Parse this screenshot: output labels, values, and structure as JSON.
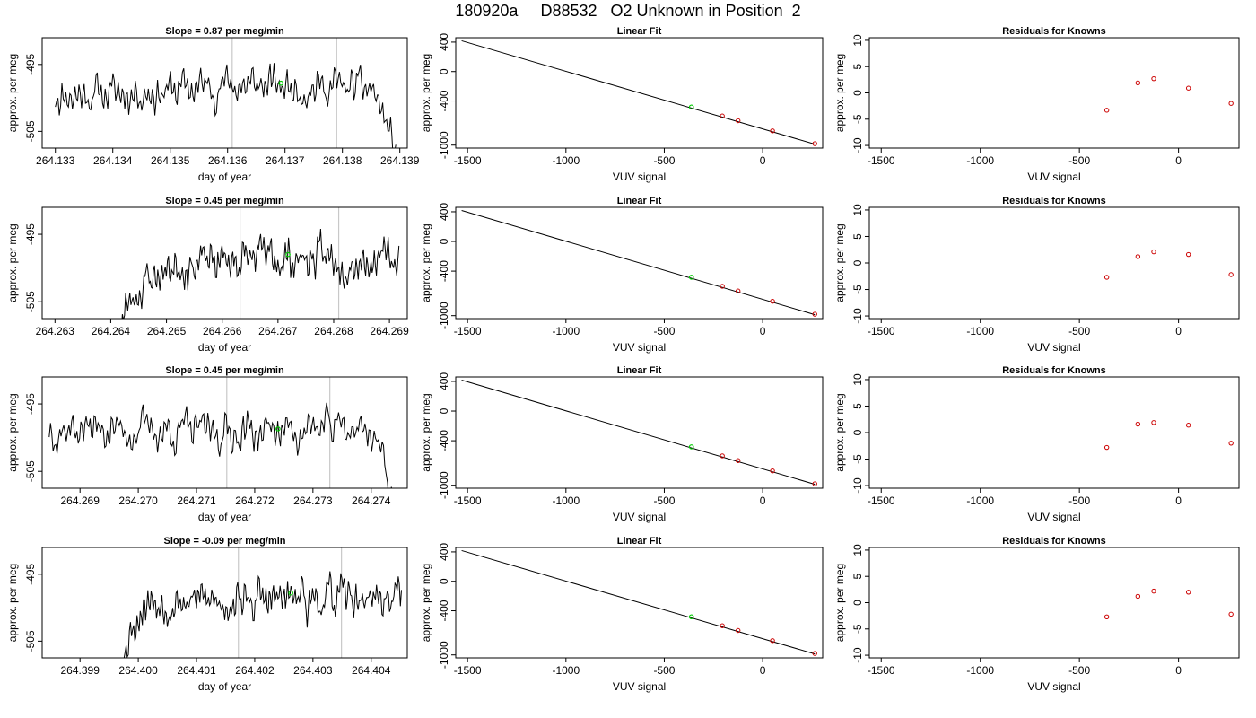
{
  "page": {
    "title": "180920a     D88532   O2 Unknown in Position  2"
  },
  "style": {
    "trace_color": "#000000",
    "unknown_color": "#00cc00",
    "known_color": "#cc0000",
    "marker_line_color": "#c8c8c8",
    "axis_color": "#000000"
  },
  "chart_data": [
    {
      "type": "line",
      "row": 0,
      "col": 0,
      "title": "Slope =  0.87  per meg/min",
      "xlabel": "day of year",
      "ylabel": "approx. per meg",
      "xticks": [
        264.133,
        264.134,
        264.135,
        264.136,
        264.137,
        264.138,
        264.139
      ],
      "xtick_labels": [
        "264.133",
        "264.134",
        "264.135",
        "264.136",
        "264.137",
        "264.138",
        "264.139"
      ],
      "yticks": [
        -495,
        -505
      ],
      "ytick_labels": [
        "-495",
        "-505"
      ],
      "xlim": [
        264.13277,
        264.13913
      ],
      "ylim": [
        -507.5,
        -491.0
      ],
      "vlines": [
        264.13608,
        264.1379
      ],
      "series": [
        {
          "start": 264.133,
          "end": 264.13893,
          "base": -499.2,
          "amp": 1.6,
          "seed": 11,
          "trend": [
            [
              0,
              -499.5
            ],
            [
              0.3,
              -499.0
            ],
            [
              0.5,
              -498.0
            ],
            [
              0.8,
              -498.4
            ],
            [
              0.93,
              -498.6
            ],
            [
              0.96,
              -502
            ],
            [
              1.0,
              -508.5
            ]
          ]
        }
      ],
      "unknown_point": {
        "x": 264.13693,
        "y": -497.8
      }
    },
    {
      "type": "scatter",
      "row": 0,
      "col": 1,
      "title": "Linear Fit",
      "xlabel": "VUV signal",
      "ylabel": "approx. per meg",
      "xticks": [
        -1500,
        -1000,
        -500,
        0
      ],
      "xtick_labels": [
        "-1500",
        "-1000",
        "-500",
        "0"
      ],
      "yticks": [
        400,
        0,
        -400,
        -1000
      ],
      "ytick_labels": [
        "400",
        "0",
        "-400",
        "-1000"
      ],
      "xlim": [
        -1560,
        305
      ],
      "ylim": [
        -1040,
        460
      ],
      "fit_line": [
        [
          -1530,
          418
        ],
        [
          265,
          -987
        ]
      ],
      "known_points": [
        {
          "x": -205,
          "y": -604
        },
        {
          "x": -125,
          "y": -668
        },
        {
          "x": 50,
          "y": -806
        },
        {
          "x": 265,
          "y": -980
        }
      ],
      "unknown_point": {
        "x": -362,
        "y": -482
      }
    },
    {
      "type": "scatter",
      "row": 0,
      "col": 2,
      "title": "Residuals for Knowns",
      "xlabel": "VUV signal",
      "ylabel": "approx. per meg",
      "xticks": [
        -1500,
        -1000,
        -500,
        0
      ],
      "xtick_labels": [
        "-1500",
        "-1000",
        "-500",
        "0"
      ],
      "yticks": [
        10,
        5,
        0,
        -5,
        -10
      ],
      "ytick_labels": [
        "10",
        "5",
        "0",
        "-5",
        "-10"
      ],
      "xlim": [
        -1560,
        305
      ],
      "ylim": [
        -10.5,
        10.5
      ],
      "known_points": [
        {
          "x": -362,
          "y": -3.3
        },
        {
          "x": -205,
          "y": 1.9
        },
        {
          "x": -125,
          "y": 2.7
        },
        {
          "x": 50,
          "y": 0.9
        },
        {
          "x": 265,
          "y": -2.0
        }
      ]
    },
    {
      "type": "line",
      "row": 1,
      "col": 0,
      "title": "Slope =  0.45  per meg/min",
      "xlabel": "day of year",
      "ylabel": "approx. per meg",
      "xticks": [
        264.263,
        264.264,
        264.265,
        264.266,
        264.267,
        264.268,
        264.269
      ],
      "xtick_labels": [
        "264.263",
        "264.264",
        "264.265",
        "264.266",
        "264.267",
        "264.268",
        "264.269"
      ],
      "yticks": [
        -495,
        -505
      ],
      "ytick_labels": [
        "-495",
        "-505"
      ],
      "xlim": [
        264.26277,
        264.26932
      ],
      "ylim": [
        -507.5,
        -491.0
      ],
      "vlines": [
        264.26632,
        264.26809
      ],
      "series": [
        {
          "start": 264.26417,
          "end": 264.26917,
          "base": -499.0,
          "amp": 1.7,
          "seed": 23,
          "trend": [
            [
              0,
              -508
            ],
            [
              0.04,
              -504.5
            ],
            [
              0.09,
              -502
            ],
            [
              0.2,
              -499.5
            ],
            [
              0.5,
              -498.5
            ],
            [
              1.0,
              -498.8
            ]
          ]
        }
      ],
      "unknown_point": {
        "x": 264.26718,
        "y": -498.0
      }
    },
    {
      "type": "scatter",
      "row": 1,
      "col": 1,
      "title": "Linear Fit",
      "xlabel": "VUV signal",
      "ylabel": "approx. per meg",
      "xticks": [
        -1500,
        -1000,
        -500,
        0
      ],
      "xtick_labels": [
        "-1500",
        "-1000",
        "-500",
        "0"
      ],
      "yticks": [
        400,
        0,
        -400,
        -1000
      ],
      "ytick_labels": [
        "400",
        "0",
        "-400",
        "-1000"
      ],
      "xlim": [
        -1560,
        305
      ],
      "ylim": [
        -1040,
        460
      ],
      "fit_line": [
        [
          -1530,
          418
        ],
        [
          265,
          -987
        ]
      ],
      "known_points": [
        {
          "x": -205,
          "y": -604
        },
        {
          "x": -125,
          "y": -668
        },
        {
          "x": 50,
          "y": -806
        },
        {
          "x": 265,
          "y": -980
        }
      ],
      "unknown_point": {
        "x": -362,
        "y": -482
      }
    },
    {
      "type": "scatter",
      "row": 1,
      "col": 2,
      "title": "Residuals for Knowns",
      "xlabel": "VUV signal",
      "ylabel": "approx. per meg",
      "xticks": [
        -1500,
        -1000,
        -500,
        0
      ],
      "xtick_labels": [
        "-1500",
        "-1000",
        "-500",
        "0"
      ],
      "yticks": [
        10,
        5,
        0,
        -5,
        -10
      ],
      "ytick_labels": [
        "10",
        "5",
        "0",
        "-5",
        "-10"
      ],
      "xlim": [
        -1560,
        305
      ],
      "ylim": [
        -10.5,
        10.5
      ],
      "known_points": [
        {
          "x": -362,
          "y": -2.7
        },
        {
          "x": -205,
          "y": 1.2
        },
        {
          "x": -125,
          "y": 2.1
        },
        {
          "x": 50,
          "y": 1.6
        },
        {
          "x": 265,
          "y": -2.2
        }
      ]
    },
    {
      "type": "line",
      "row": 2,
      "col": 0,
      "title": "Slope =  0.45  per meg/min",
      "xlabel": "day of year",
      "ylabel": "approx. per meg",
      "xticks": [
        264.269,
        264.27,
        264.271,
        264.272,
        264.273,
        264.274
      ],
      "xtick_labels": [
        "264.269",
        "264.270",
        "264.271",
        "264.272",
        "264.273",
        "264.274"
      ],
      "yticks": [
        -495,
        -505
      ],
      "ytick_labels": [
        "-495",
        "-505"
      ],
      "xlim": [
        264.26835,
        264.27462
      ],
      "ylim": [
        -507.5,
        -491.0
      ],
      "vlines": [
        264.27152,
        264.27329
      ],
      "series": [
        {
          "start": 264.26847,
          "end": 264.27437,
          "base": -498.8,
          "amp": 1.7,
          "seed": 37,
          "trend": [
            [
              0,
              -498.5
            ],
            [
              0.5,
              -499.2
            ],
            [
              0.9,
              -498.5
            ],
            [
              0.95,
              -499.5
            ],
            [
              0.97,
              -503
            ],
            [
              1.0,
              -508.5
            ]
          ]
        }
      ],
      "unknown_point": {
        "x": 264.2724,
        "y": -498.7
      }
    },
    {
      "type": "scatter",
      "row": 2,
      "col": 1,
      "title": "Linear Fit",
      "xlabel": "VUV signal",
      "ylabel": "approx. per meg",
      "xticks": [
        -1500,
        -1000,
        -500,
        0
      ],
      "xtick_labels": [
        "-1500",
        "-1000",
        "-500",
        "0"
      ],
      "yticks": [
        400,
        0,
        -400,
        -1000
      ],
      "ytick_labels": [
        "400",
        "0",
        "-400",
        "-1000"
      ],
      "xlim": [
        -1560,
        305
      ],
      "ylim": [
        -1040,
        460
      ],
      "fit_line": [
        [
          -1530,
          418
        ],
        [
          265,
          -987
        ]
      ],
      "known_points": [
        {
          "x": -205,
          "y": -604
        },
        {
          "x": -125,
          "y": -668
        },
        {
          "x": 50,
          "y": -806
        },
        {
          "x": 265,
          "y": -980
        }
      ],
      "unknown_point": {
        "x": -362,
        "y": -482
      }
    },
    {
      "type": "scatter",
      "row": 2,
      "col": 2,
      "title": "Residuals for Knowns",
      "xlabel": "VUV signal",
      "ylabel": "approx. per meg",
      "xticks": [
        -1500,
        -1000,
        -500,
        0
      ],
      "xtick_labels": [
        "-1500",
        "-1000",
        "-500",
        "0"
      ],
      "yticks": [
        10,
        5,
        0,
        -5,
        -10
      ],
      "ytick_labels": [
        "10",
        "5",
        "0",
        "-5",
        "-10"
      ],
      "xlim": [
        -1560,
        305
      ],
      "ylim": [
        -10.5,
        10.5
      ],
      "known_points": [
        {
          "x": -362,
          "y": -2.8
        },
        {
          "x": -205,
          "y": 1.6
        },
        {
          "x": -125,
          "y": 1.9
        },
        {
          "x": 50,
          "y": 1.4
        },
        {
          "x": 265,
          "y": -2.0
        }
      ]
    },
    {
      "type": "line",
      "row": 3,
      "col": 0,
      "title": "Slope =  -0.09  per meg/min",
      "xlabel": "day of year",
      "ylabel": "approx. per meg",
      "xticks": [
        264.399,
        264.4,
        264.401,
        264.402,
        264.403,
        264.404
      ],
      "xtick_labels": [
        "264.399",
        "264.400",
        "264.401",
        "264.402",
        "264.403",
        "264.404"
      ],
      "yticks": [
        -495,
        -505
      ],
      "ytick_labels": [
        "-495",
        "-505"
      ],
      "xlim": [
        264.39835,
        264.40462
      ],
      "ylim": [
        -507.5,
        -491.0
      ],
      "vlines": [
        264.40172,
        264.40349
      ],
      "series": [
        {
          "start": 264.39968,
          "end": 264.40452,
          "base": -499.0,
          "amp": 1.7,
          "seed": 53,
          "trend": [
            [
              0,
              -508.5
            ],
            [
              0.04,
              -503
            ],
            [
              0.09,
              -499
            ],
            [
              0.3,
              -499
            ],
            [
              0.6,
              -498.8
            ],
            [
              1.0,
              -498.5
            ]
          ]
        }
      ],
      "unknown_point": {
        "x": 264.40262,
        "y": -497.8
      }
    },
    {
      "type": "scatter",
      "row": 3,
      "col": 1,
      "title": "Linear Fit",
      "xlabel": "VUV signal",
      "ylabel": "approx. per meg",
      "xticks": [
        -1500,
        -1000,
        -500,
        0
      ],
      "xtick_labels": [
        "-1500",
        "-1000",
        "-500",
        "0"
      ],
      "yticks": [
        400,
        0,
        -400,
        -1000
      ],
      "ytick_labels": [
        "400",
        "0",
        "-400",
        "-1000"
      ],
      "xlim": [
        -1560,
        305
      ],
      "ylim": [
        -1040,
        460
      ],
      "fit_line": [
        [
          -1530,
          418
        ],
        [
          265,
          -987
        ]
      ],
      "known_points": [
        {
          "x": -205,
          "y": -604
        },
        {
          "x": -125,
          "y": -668
        },
        {
          "x": 50,
          "y": -806
        },
        {
          "x": 265,
          "y": -980
        }
      ],
      "unknown_point": {
        "x": -362,
        "y": -482
      }
    },
    {
      "type": "scatter",
      "row": 3,
      "col": 2,
      "title": "Residuals for Knowns",
      "xlabel": "VUV signal",
      "ylabel": "approx. per meg",
      "xticks": [
        -1500,
        -1000,
        -500,
        0
      ],
      "xtick_labels": [
        "-1500",
        "-1000",
        "-500",
        "0"
      ],
      "yticks": [
        10,
        5,
        0,
        -5,
        -10
      ],
      "ytick_labels": [
        "10",
        "5",
        "0",
        "-5",
        "-10"
      ],
      "xlim": [
        -1560,
        305
      ],
      "ylim": [
        -10.5,
        10.5
      ],
      "known_points": [
        {
          "x": -362,
          "y": -2.7
        },
        {
          "x": -205,
          "y": 1.2
        },
        {
          "x": -125,
          "y": 2.2
        },
        {
          "x": 50,
          "y": 2.0
        },
        {
          "x": 265,
          "y": -2.2
        }
      ]
    }
  ]
}
